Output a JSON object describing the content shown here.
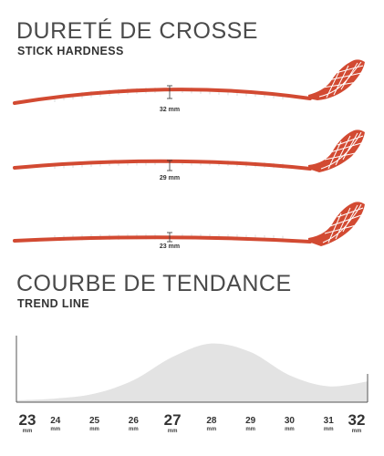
{
  "hardness": {
    "title": "DURETÉ DE CROSSE",
    "subtitle": "STICK HARDNESS",
    "sticks": [
      {
        "label": "32 mm"
      },
      {
        "label": "29 mm"
      },
      {
        "label": "23 mm"
      }
    ]
  },
  "trend": {
    "title": "COURBE DE TENDANCE",
    "subtitle": "TREND LINE"
  },
  "colors": {
    "stick": "#d24a32",
    "curve_fill": "#e3e3e3",
    "axis": "#555555"
  },
  "chart_data": {
    "type": "area",
    "x": [
      23,
      24,
      25,
      26,
      27,
      28,
      29,
      30,
      31,
      32
    ],
    "tick_labels": [
      "23",
      "24",
      "25",
      "26",
      "27",
      "28",
      "29",
      "30",
      "31",
      "32"
    ],
    "tick_unit": "mm",
    "y": [
      0.03,
      0.06,
      0.14,
      0.36,
      0.74,
      0.96,
      0.82,
      0.44,
      0.26,
      0.34
    ],
    "ylim": [
      0,
      1
    ],
    "xlabel": "",
    "ylabel": "",
    "title": ""
  }
}
